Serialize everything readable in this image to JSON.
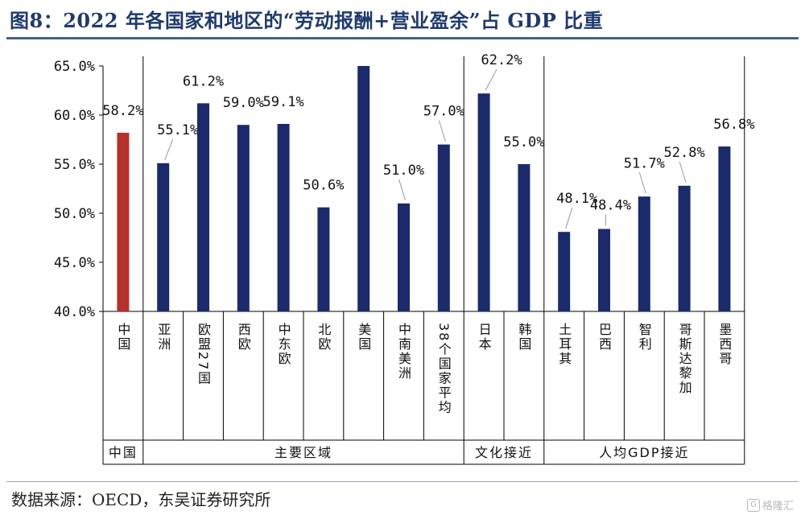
{
  "title": "图8：2022 年各国家和地区的“劳动报酬+营业盈余”占 GDP 比重",
  "source": "数据来源：OECD，东吴证券研究所",
  "watermark": {
    "icon": "G",
    "text": "格隆汇"
  },
  "colors": {
    "china": "#b5312c",
    "other": "#1b2a6b",
    "title": "#1f3a6b"
  },
  "chart_data": {
    "type": "bar",
    "ylim": [
      40,
      65
    ],
    "yticks": [
      "40.0%",
      "45.0%",
      "50.0%",
      "55.0%",
      "60.0%",
      "65.0%"
    ],
    "ytick_values": [
      40,
      45,
      50,
      55,
      60,
      65
    ],
    "categories": [
      "中国",
      "亚洲",
      "欧盟27国",
      "西欧",
      "中东欧",
      "北欧",
      "美国",
      "中南美洲",
      "38个国家平均",
      "日本",
      "韩国",
      "土耳其",
      "巴西",
      "智利",
      "哥斯达黎加",
      "墨西哥"
    ],
    "values": [
      58.2,
      55.1,
      61.2,
      59.0,
      59.1,
      50.6,
      65.0,
      51.0,
      57.0,
      62.2,
      55.0,
      48.1,
      48.4,
      51.7,
      52.8,
      56.8
    ],
    "data_labels": [
      "58.2%",
      "55.1%",
      "61.2%",
      "59.0%",
      "59.1%",
      "50.6%",
      "",
      "51.0%",
      "57.0%",
      "62.2%",
      "55.0%",
      "48.1%",
      "48.4%",
      "51.7%",
      "52.8%",
      "56.8%"
    ],
    "highlight": [
      true,
      false,
      false,
      false,
      false,
      false,
      false,
      false,
      false,
      false,
      false,
      false,
      false,
      false,
      false,
      false
    ],
    "groups": [
      {
        "label": "中国",
        "start": 0,
        "end": 0
      },
      {
        "label": "主要区域",
        "start": 1,
        "end": 8
      },
      {
        "label": "文化接近",
        "start": 9,
        "end": 10
      },
      {
        "label": "人均GDP接近",
        "start": 11,
        "end": 15
      }
    ]
  }
}
